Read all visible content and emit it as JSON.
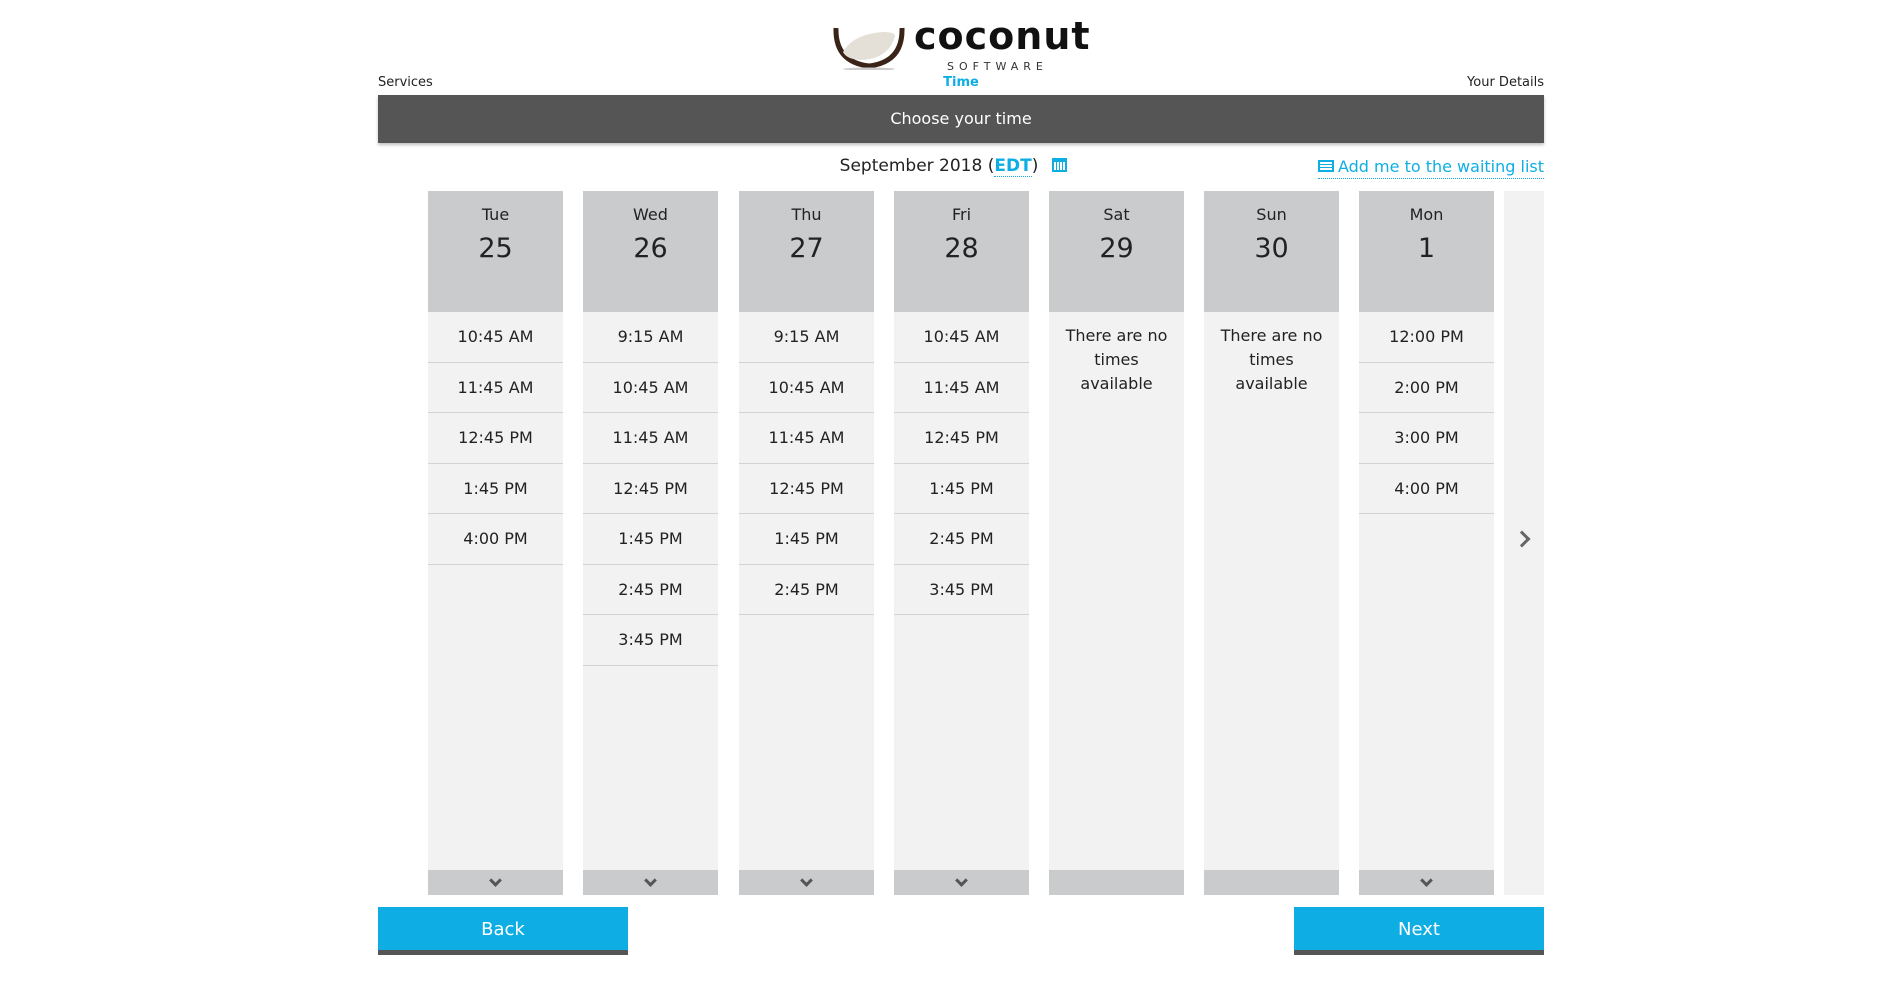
{
  "brand": {
    "name": "coconut",
    "tagline": "SOFTWARE"
  },
  "steps": {
    "services": "Services",
    "time": "Time",
    "details": "Your Details"
  },
  "header": {
    "title": "Choose your time"
  },
  "month": {
    "label": "September 2018",
    "tz": "EDT"
  },
  "waiting_list": "Add me to the waiting list",
  "no_times": "There are no times available",
  "days": [
    {
      "dow": "Tue",
      "day": "25",
      "times": [
        "10:45 AM",
        "11:45 AM",
        "12:45 PM",
        "1:45 PM",
        "4:00 PM"
      ]
    },
    {
      "dow": "Wed",
      "day": "26",
      "times": [
        "9:15 AM",
        "10:45 AM",
        "11:45 AM",
        "12:45 PM",
        "1:45 PM",
        "2:45 PM",
        "3:45 PM"
      ]
    },
    {
      "dow": "Thu",
      "day": "27",
      "times": [
        "9:15 AM",
        "10:45 AM",
        "11:45 AM",
        "12:45 PM",
        "1:45 PM",
        "2:45 PM"
      ]
    },
    {
      "dow": "Fri",
      "day": "28",
      "times": [
        "10:45 AM",
        "11:45 AM",
        "12:45 PM",
        "1:45 PM",
        "2:45 PM",
        "3:45 PM"
      ]
    },
    {
      "dow": "Sat",
      "day": "29",
      "times": []
    },
    {
      "dow": "Sun",
      "day": "30",
      "times": []
    },
    {
      "dow": "Mon",
      "day": "1",
      "times": [
        "12:00 PM",
        "2:00 PM",
        "3:00 PM",
        "4:00 PM"
      ]
    }
  ],
  "buttons": {
    "back": "Back",
    "next": "Next"
  },
  "colors": {
    "accent": "#0eaee4",
    "bar": "#545554"
  }
}
